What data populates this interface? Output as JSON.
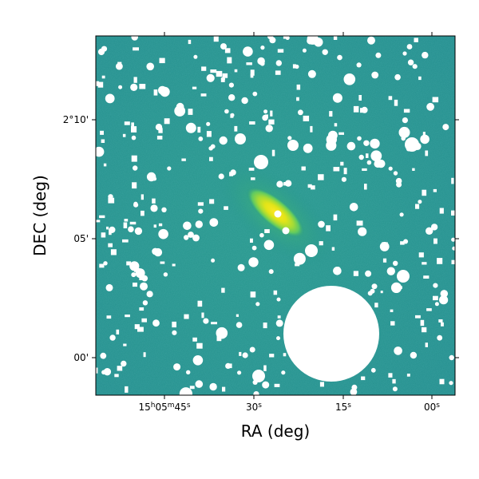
{
  "figure": {
    "xlabel": "RA (deg)",
    "ylabel": "DEC (deg)",
    "x_ticks": [
      {
        "label": "15h05m45s",
        "parts": [
          "15",
          "h",
          "05",
          "m",
          "45",
          "s"
        ]
      },
      {
        "label": "30s",
        "parts": [
          "30",
          "s"
        ]
      },
      {
        "label": "15s",
        "parts": [
          "15",
          "s"
        ]
      },
      {
        "label": "00s",
        "parts": [
          "00",
          "s"
        ]
      }
    ],
    "y_ticks": [
      {
        "label": "2°10'"
      },
      {
        "label": "05'"
      },
      {
        "label": "00'"
      }
    ],
    "colors": {
      "background_field": "#21918c",
      "galaxy_core": "#fde725",
      "galaxy_halo": "#b5de2b",
      "mask": "#ffffff",
      "frame": "#000000"
    },
    "colormap": "viridis",
    "masked_sources": "white circular and square masks over foreground stars",
    "galaxy_shape": "elongated diagonal disk"
  }
}
